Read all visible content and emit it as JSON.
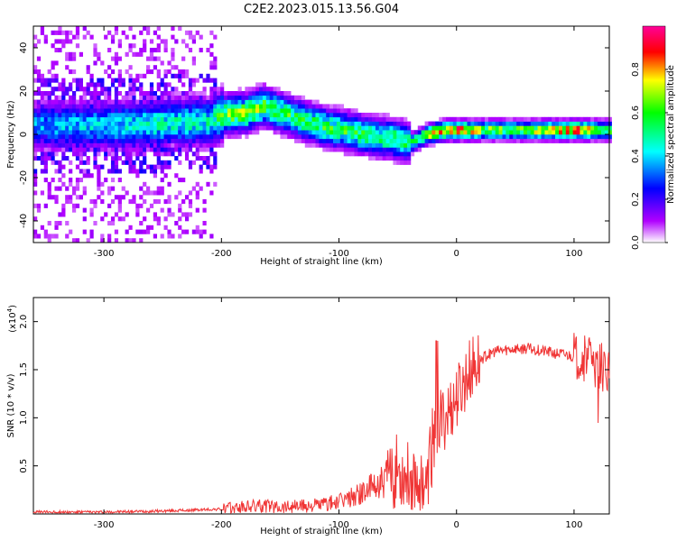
{
  "figure": {
    "title": "C2E2.2023.015.13.56.G04"
  },
  "chart_data": [
    {
      "type": "heatmap",
      "xlabel": "Height of straight line (km)",
      "ylabel": "Frequency (Hz)",
      "xlim": [
        -360,
        130
      ],
      "ylim": [
        -50,
        50
      ],
      "xticks": [
        -300,
        -200,
        -100,
        0,
        100
      ],
      "yticks": [
        -40,
        -20,
        0,
        20,
        40
      ],
      "colorbar": {
        "label": "Normalized spectral amplitude",
        "ticks": [
          0.0,
          0.2,
          0.4,
          0.6,
          0.8
        ],
        "range": [
          0,
          1
        ],
        "colormap": [
          "#ffffff",
          "#b000ff",
          "#0000ff",
          "#00ffff",
          "#00ff00",
          "#ffff00",
          "#ff0000",
          "#ff00aa"
        ]
      },
      "ridge": {
        "x": [
          -360,
          -300,
          -250,
          -210,
          -200,
          -180,
          -165,
          -150,
          -130,
          -110,
          -90,
          -70,
          -55,
          -40,
          -30,
          -20,
          -10,
          0,
          20,
          50,
          80,
          100,
          120,
          130
        ],
        "center_hz": [
          3,
          3,
          4,
          5,
          8,
          9,
          12,
          9,
          5,
          2,
          0,
          -2,
          -3,
          -5,
          -2,
          0,
          1,
          1,
          1,
          1,
          1,
          1,
          1,
          1
        ],
        "peak_amplitude": [
          0.35,
          0.4,
          0.45,
          0.45,
          0.6,
          0.65,
          0.6,
          0.55,
          0.55,
          0.55,
          0.55,
          0.5,
          0.55,
          0.5,
          0.6,
          0.75,
          0.8,
          0.85,
          0.65,
          0.6,
          0.75,
          0.85,
          0.6,
          0.55
        ]
      }
    },
    {
      "type": "line",
      "xlabel": "Height of straight line (km)",
      "ylabel": "SNR (10 * v/v)",
      "scale_note": "(x10",
      "scale_exp": "4",
      "scale_close": ")",
      "xlim": [
        -360,
        130
      ],
      "ylim": [
        0,
        2.25
      ],
      "xticks": [
        -300,
        -200,
        -100,
        0,
        100
      ],
      "yticks": [
        0.5,
        1.0,
        1.5,
        2.0
      ],
      "ytick_labels": [
        "0.5",
        "1.0",
        "1.5",
        "2.0"
      ],
      "color": "#f03535",
      "series": [
        {
          "x": [
            -360,
            -300,
            -250,
            -200,
            -170,
            -150,
            -120,
            -100,
            -80,
            -60,
            -50,
            -40,
            -30,
            -25,
            -20,
            -15,
            -10,
            -5,
            0,
            10,
            20,
            30,
            40,
            50,
            60,
            70,
            80,
            90,
            100,
            105,
            110,
            115,
            120,
            125,
            130
          ],
          "values": [
            0.02,
            0.02,
            0.03,
            0.05,
            0.08,
            0.08,
            0.09,
            0.12,
            0.22,
            0.35,
            0.45,
            0.4,
            0.35,
            0.3,
            0.8,
            0.95,
            1.0,
            1.1,
            1.2,
            1.45,
            1.6,
            1.68,
            1.7,
            1.72,
            1.72,
            1.7,
            1.68,
            1.66,
            1.64,
            1.65,
            1.6,
            1.58,
            1.55,
            1.52,
            1.5
          ]
        }
      ]
    }
  ]
}
